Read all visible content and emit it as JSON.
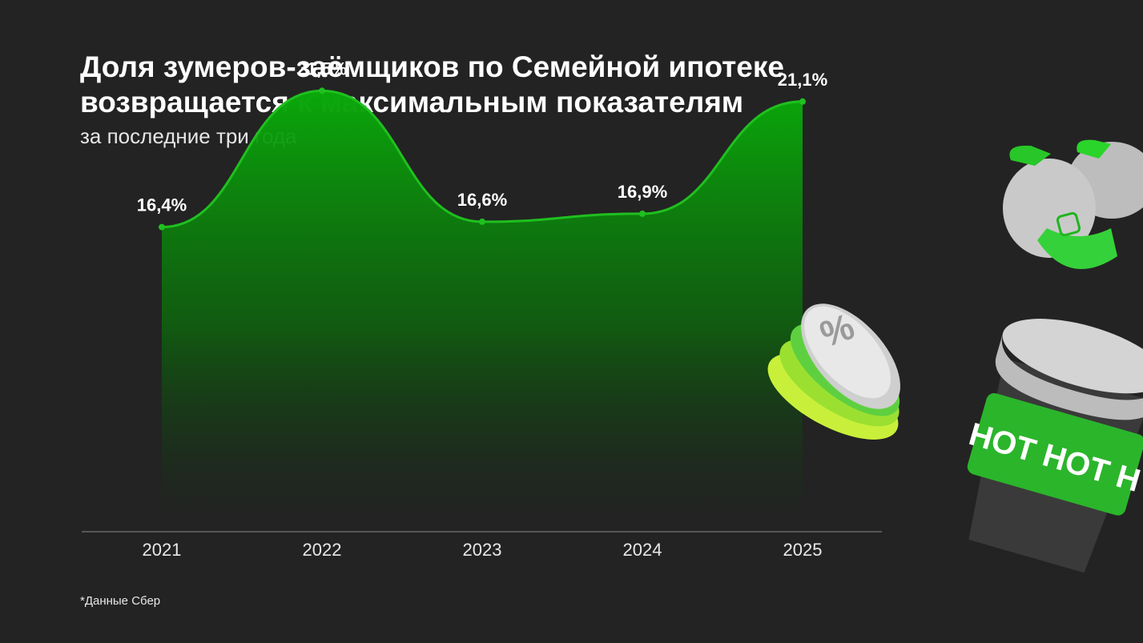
{
  "title_lines": [
    "Доля зумеров-заёмщиков по Семейной ипотеке",
    "возвращается к максимальным показателям"
  ],
  "subtitle": "за последние три года",
  "footnote": "*Данные Сбер",
  "colors": {
    "background": "#232323",
    "line": "#1fc01f",
    "fill": "#12a012"
  },
  "decor": {
    "cup_text": "НОТ НОТ Н",
    "badge_symbol": "%"
  },
  "chart_data": {
    "type": "area",
    "categories": [
      "2021",
      "2022",
      "2023",
      "2024",
      "2025"
    ],
    "values": [
      16.4,
      21.5,
      16.6,
      16.9,
      21.1
    ],
    "labels": [
      "16,4%",
      "21,5%",
      "16,6%",
      "16,9%",
      "21,1%"
    ],
    "ylim": [
      5,
      24
    ],
    "grid": false,
    "legend": "none"
  }
}
